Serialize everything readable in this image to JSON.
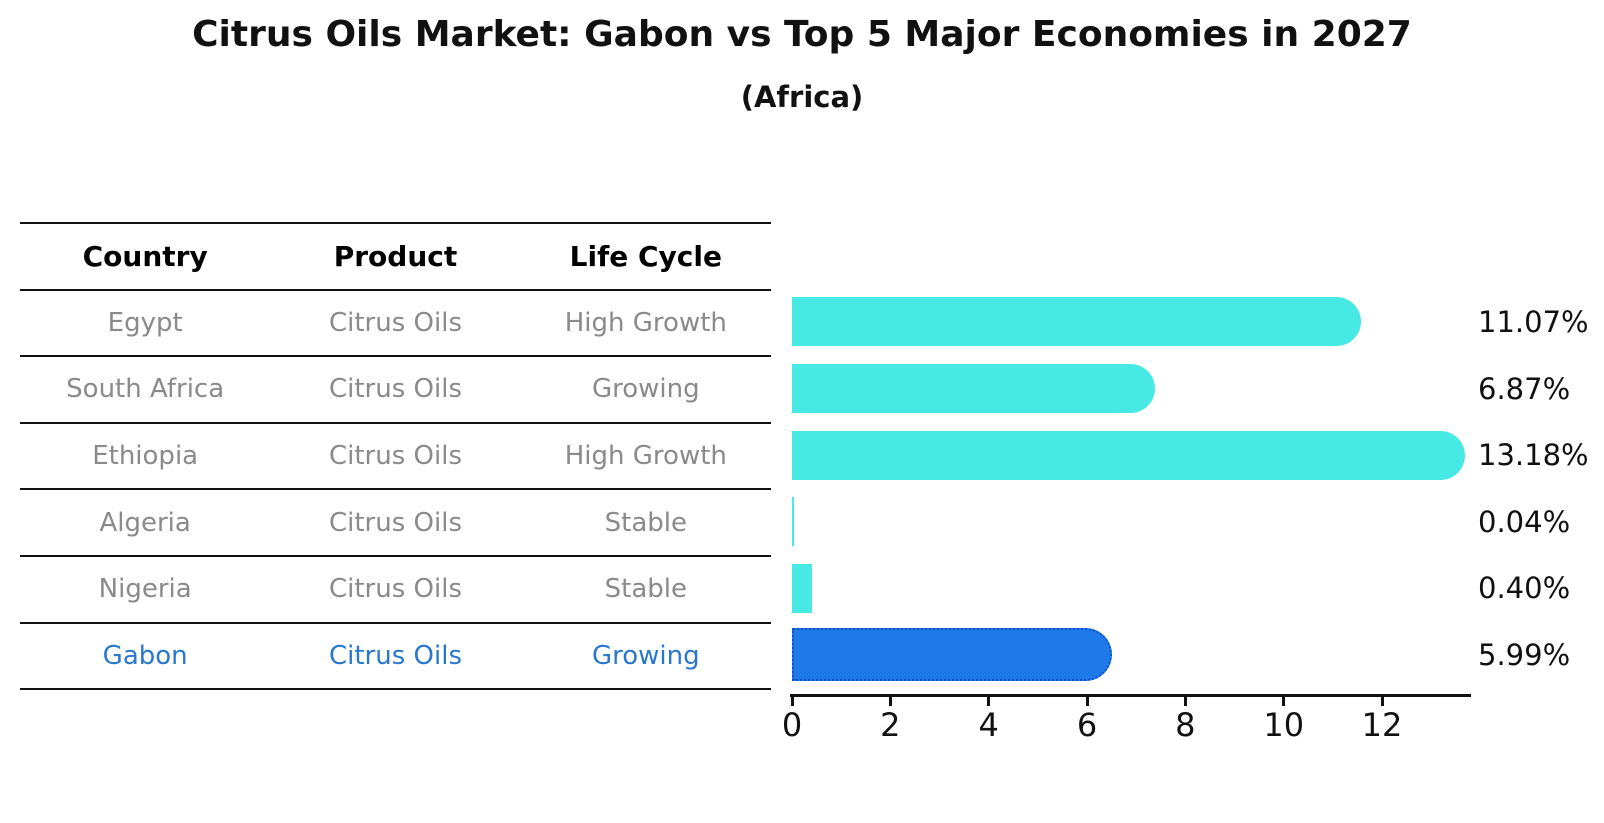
{
  "title": "Citrus Oils Market: Gabon vs Top 5 Major Economies in 2027",
  "subtitle": "(Africa)",
  "table": {
    "headers": [
      "Country",
      "Product",
      "Life Cycle"
    ],
    "rows": [
      {
        "country": "Egypt",
        "product": "Citrus Oils",
        "life_cycle": "High Growth",
        "highlight": false
      },
      {
        "country": "South Africa",
        "product": "Citrus Oils",
        "life_cycle": "Growing",
        "highlight": false
      },
      {
        "country": "Ethiopia",
        "product": "Citrus Oils",
        "life_cycle": "High Growth",
        "highlight": false
      },
      {
        "country": "Algeria",
        "product": "Citrus Oils",
        "life_cycle": "Stable",
        "highlight": false
      },
      {
        "country": "Nigeria",
        "product": "Citrus Oils",
        "life_cycle": "Stable",
        "highlight": false
      },
      {
        "country": "Gabon",
        "product": "Citrus Oils",
        "life_cycle": "Growing",
        "highlight": true
      }
    ]
  },
  "chart_data": {
    "type": "bar",
    "orientation": "horizontal",
    "title": "Citrus Oils Market: Gabon vs Top 5 Major Economies in 2027",
    "subtitle": "(Africa)",
    "categories": [
      "Egypt",
      "South Africa",
      "Ethiopia",
      "Algeria",
      "Nigeria",
      "Gabon"
    ],
    "values": [
      11.07,
      6.87,
      13.18,
      0.04,
      0.4,
      5.99
    ],
    "value_labels": [
      "11.07%",
      "6.87%",
      "13.18%",
      "0.04%",
      "0.40%",
      "5.99%"
    ],
    "x_ticks": [
      0,
      2,
      4,
      6,
      8,
      10,
      12
    ],
    "xlim": [
      0,
      13.8
    ],
    "grid": false,
    "legend": false,
    "highlight_index": 5,
    "bar_color": "#47E9E4",
    "highlight_bar_color": "#1E7AE8",
    "highlight_bar_border_color": "#0C53C4",
    "highlight_text_color": "#2878CE",
    "text_gray": "#8a8a8a",
    "axis_color": "#111111"
  }
}
